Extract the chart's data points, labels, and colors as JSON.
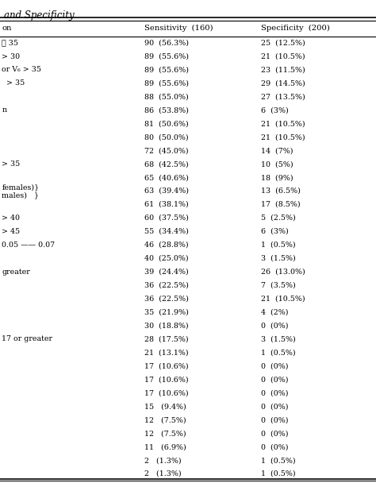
{
  "title": "and Specificity",
  "headers": [
    "on",
    "Sensitivity  (160)",
    "Specificity  (200)"
  ],
  "col1_labels": [
    "≧ 35",
    "> 30",
    "or V₆ > 35",
    "  > 35",
    "",
    "n",
    "",
    "",
    "",
    "> 35",
    "",
    "females)}\nmales)   }",
    "",
    "> 40",
    "> 45",
    "0.05 —— 0.07",
    "",
    "greater",
    "",
    "",
    "",
    "",
    "17 or greater",
    "",
    "",
    "",
    "",
    "",
    "",
    "",
    "",
    "",
    ""
  ],
  "col2": [
    "90  (56.3%)",
    "89  (55.6%)",
    "89  (55.6%)",
    "89  (55.6%)",
    "88  (55.0%)",
    "86  (53.8%)",
    "81  (50.6%)",
    "80  (50.0%)",
    "72  (45.0%)",
    "68  (42.5%)",
    "65  (40.6%)",
    "63  (39.4%)",
    "61  (38.1%)",
    "60  (37.5%)",
    "55  (34.4%)",
    "46  (28.8%)",
    "40  (25.0%)",
    "39  (24.4%)",
    "36  (22.5%)",
    "36  (22.5%)",
    "35  (21.9%)",
    "30  (18.8%)",
    "28  (17.5%)",
    "21  (13.1%)",
    "17  (10.6%)",
    "17  (10.6%)",
    "17  (10.6%)",
    "15   (9.4%)",
    "12   (7.5%)",
    "12   (7.5%)",
    "11   (6.9%)",
    "2   (1.3%)",
    "2   (1.3%)"
  ],
  "col3": [
    "25  (12.5%)",
    "21  (10.5%)",
    "23  (11.5%)",
    "29  (14.5%)",
    "27  (13.5%)",
    "6  (3%)",
    "21  (10.5%)",
    "21  (10.5%)",
    "14  (7%)",
    "10  (5%)",
    "18  (9%)",
    "13  (6.5%)",
    "17  (8.5%)",
    "5  (2.5%)",
    "6  (3%)",
    "1  (0.5%)",
    "3  (1.5%)",
    "26  (13.0%)",
    "7  (3.5%)",
    "21  (10.5%)",
    "4  (2%)",
    "0  (0%)",
    "3  (1.5%)",
    "1  (0.5%)",
    "0  (0%)",
    "0  (0%)",
    "0  (0%)",
    "0  (0%)",
    "0  (0%)",
    "0  (0%)",
    "0  (0%)",
    "1  (0.5%)",
    "1  (0.5%)"
  ],
  "bold_rows": [],
  "fontsize": 6.8,
  "header_fontsize": 7.2,
  "title_fontsize": 8.5,
  "figsize": [
    4.74,
    6.08
  ],
  "dpi": 100
}
